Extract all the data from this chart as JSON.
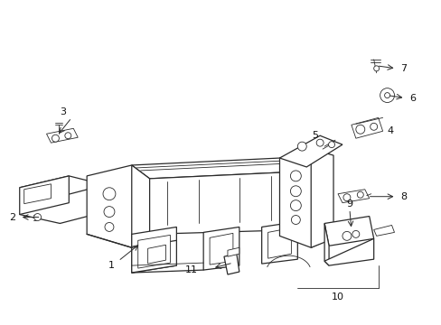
{
  "background_color": "#ffffff",
  "line_color": "#2a2a2a",
  "label_color": "#111111",
  "figsize": [
    4.89,
    3.6
  ],
  "dpi": 100
}
